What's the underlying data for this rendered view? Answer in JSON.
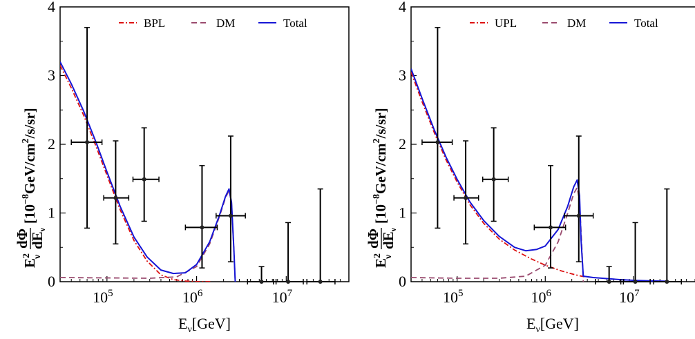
{
  "figure": {
    "x_axis_label": "E_ν[GeV]",
    "y_axis_label_prefix": "E",
    "y_axis_label_frac_num": "dΦ",
    "y_axis_label_frac_den": "dE",
    "y_axis_label_units": "[10⁻⁸GeV/cm²/s/sr]"
  },
  "chart_data": [
    {
      "type": "line",
      "panel": "left",
      "xlabel": "Eν[GeV]",
      "ylabel": "Eν² dΦ/dEν [10⁻⁸GeV/cm²/s/sr]",
      "x_scale": "log",
      "xlim": [
        30000,
        50000000
      ],
      "ylim": [
        0,
        4
      ],
      "y_ticks": [
        "0",
        "1",
        "2",
        "3",
        "4"
      ],
      "x_ticks": [
        {
          "value": 100000,
          "base": "10",
          "exp": "5"
        },
        {
          "value": 1000000,
          "base": "10",
          "exp": "6"
        },
        {
          "value": 10000000,
          "base": "10",
          "exp": "7"
        }
      ],
      "legend": {
        "position": "top",
        "entries": [
          {
            "label": "BPL",
            "color": "#dd1111",
            "dash": "7,3,2,3"
          },
          {
            "label": "DM",
            "color": "#9a4a6e",
            "dash": "8,5"
          },
          {
            "label": "Total",
            "color": "#1515d6",
            "dash": ""
          }
        ]
      },
      "series": [
        {
          "name": "BPL",
          "color": "#dd1111",
          "dash": "7,3,2,3",
          "x": [
            30000,
            40000,
            55000,
            75000,
            100000,
            140000,
            200000,
            280000,
            400000,
            550000,
            750000,
            1000000,
            1500000
          ],
          "y": [
            3.15,
            2.82,
            2.42,
            1.98,
            1.55,
            1.05,
            0.6,
            0.3,
            0.1,
            0.03,
            0.01,
            0.002,
            0.0
          ]
        },
        {
          "name": "DM",
          "color": "#9a4a6e",
          "dash": "8,5",
          "x": [
            30000,
            100000,
            300000,
            600000,
            1000000,
            1400000,
            1800000,
            2100000,
            2300000,
            2450000,
            2600000,
            2700000
          ],
          "y": [
            0.06,
            0.055,
            0.05,
            0.07,
            0.22,
            0.55,
            0.95,
            1.22,
            1.33,
            1.15,
            0.5,
            0.0
          ]
        },
        {
          "name": "Total",
          "color": "#1515d6",
          "dash": "",
          "x": [
            30000,
            40000,
            55000,
            75000,
            100000,
            140000,
            200000,
            280000,
            400000,
            550000,
            750000,
            1000000,
            1400000,
            1800000,
            2100000,
            2300000,
            2450000,
            2600000,
            2700000
          ],
          "y": [
            3.2,
            2.88,
            2.48,
            2.04,
            1.6,
            1.1,
            0.65,
            0.36,
            0.17,
            0.12,
            0.13,
            0.25,
            0.58,
            0.97,
            1.24,
            1.35,
            1.16,
            0.5,
            0.0
          ]
        }
      ],
      "data_points": {
        "x": [
          60000,
          125000,
          260000,
          1150000,
          2400000,
          5300000,
          10500000,
          24000000
        ],
        "y": [
          2.03,
          1.22,
          1.49,
          0.79,
          0.96,
          0.0,
          0.0,
          0.0
        ],
        "xerr_low": [
          40000,
          92000,
          195000,
          750000,
          1650000,
          3700000,
          7200000,
          17000000
        ],
        "xerr_high": [
          88000,
          175000,
          380000,
          1700000,
          3500000,
          7700000,
          15500000,
          35000000
        ],
        "yerr_low": [
          0.78,
          0.55,
          0.88,
          0.2,
          0.29,
          0.0,
          0.0,
          0.0
        ],
        "yerr_high": [
          3.7,
          2.05,
          2.24,
          1.69,
          2.12,
          0.22,
          0.86,
          1.35
        ]
      }
    },
    {
      "type": "line",
      "panel": "right",
      "xlabel": "Eν[GeV]",
      "ylabel": "Eν² dΦ/dEν [10⁻⁸GeV/cm²/s/sr]",
      "x_scale": "log",
      "xlim": [
        30000,
        50000000
      ],
      "ylim": [
        0,
        4
      ],
      "y_ticks": [
        "0",
        "1",
        "2",
        "3",
        "4"
      ],
      "x_ticks": [
        {
          "value": 100000,
          "base": "10",
          "exp": "5"
        },
        {
          "value": 1000000,
          "base": "10",
          "exp": "6"
        },
        {
          "value": 10000000,
          "base": "10",
          "exp": "7"
        }
      ],
      "legend": {
        "position": "top",
        "entries": [
          {
            "label": "UPL",
            "color": "#dd1111",
            "dash": "7,3,2,3"
          },
          {
            "label": "DM",
            "color": "#9a4a6e",
            "dash": "8,5"
          },
          {
            "label": "Total",
            "color": "#1515d6",
            "dash": ""
          }
        ]
      },
      "series": [
        {
          "name": "UPL",
          "color": "#dd1111",
          "dash": "7,3,2,3",
          "x": [
            30000,
            40000,
            55000,
            75000,
            100000,
            140000,
            200000,
            300000,
            450000,
            700000,
            1000000,
            1500000,
            2200000,
            2800000
          ],
          "y": [
            3.05,
            2.62,
            2.17,
            1.77,
            1.45,
            1.12,
            0.85,
            0.62,
            0.46,
            0.33,
            0.24,
            0.16,
            0.1,
            0.07
          ]
        },
        {
          "name": "DM",
          "color": "#9a4a6e",
          "dash": "8,5",
          "x": [
            30000,
            100000,
            300000,
            600000,
            1000000,
            1400000,
            1800000,
            2100000,
            2300000,
            2450000,
            2600000,
            2700000
          ],
          "y": [
            0.06,
            0.05,
            0.05,
            0.08,
            0.24,
            0.58,
            1.0,
            1.28,
            1.37,
            1.17,
            0.5,
            0.0
          ]
        },
        {
          "name": "Total",
          "color": "#1515d6",
          "dash": "",
          "x": [
            30000,
            40000,
            55000,
            75000,
            100000,
            140000,
            200000,
            300000,
            450000,
            600000,
            800000,
            1000000,
            1400000,
            1800000,
            2100000,
            2300000,
            2450000,
            2550000,
            2700000,
            3500000,
            5000000,
            7000000,
            10000000,
            15000000,
            25000000
          ],
          "y": [
            3.1,
            2.67,
            2.21,
            1.81,
            1.49,
            1.16,
            0.89,
            0.66,
            0.5,
            0.45,
            0.47,
            0.52,
            0.76,
            1.1,
            1.38,
            1.48,
            1.25,
            0.6,
            0.08,
            0.06,
            0.045,
            0.03,
            0.02,
            0.012,
            0.006
          ]
        }
      ],
      "data_points": {
        "x": [
          60000,
          125000,
          260000,
          1150000,
          2400000,
          5300000,
          10500000,
          24000000
        ],
        "y": [
          2.03,
          1.22,
          1.49,
          0.79,
          0.96,
          0.0,
          0.0,
          0.0
        ],
        "xerr_low": [
          40000,
          92000,
          195000,
          750000,
          1650000,
          3700000,
          7200000,
          17000000
        ],
        "xerr_high": [
          88000,
          175000,
          380000,
          1700000,
          3500000,
          7700000,
          15500000,
          35000000
        ],
        "yerr_low": [
          0.78,
          0.55,
          0.88,
          0.2,
          0.29,
          0.0,
          0.0,
          0.0
        ],
        "yerr_high": [
          3.7,
          2.05,
          2.24,
          1.69,
          2.12,
          0.22,
          0.86,
          1.35
        ]
      }
    }
  ]
}
